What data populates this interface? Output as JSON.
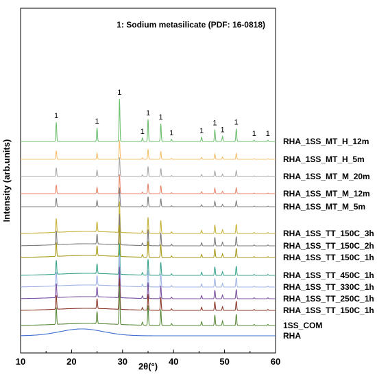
{
  "chart_data": {
    "type": "line",
    "annotation": "1: Sodium metasilicate (PDF: 16-0818)",
    "xlabel": "2θ(°)",
    "ylabel": "Intensity (arb.units)",
    "xlim": [
      10,
      60
    ],
    "x_ticks": [
      10,
      20,
      30,
      40,
      50,
      60
    ],
    "x_tick_labels": [
      "10",
      "20",
      "30",
      "40",
      "50",
      "60"
    ],
    "peak_marker_label": "1",
    "peak_markers": [
      {
        "x": 17.0,
        "label": "1"
      },
      {
        "x": 25.0,
        "label": "1"
      },
      {
        "x": 29.4,
        "label": "1"
      },
      {
        "x": 33.9,
        "label": "1"
      },
      {
        "x": 35.0,
        "label": "1"
      },
      {
        "x": 37.5,
        "label": "1"
      },
      {
        "x": 39.6,
        "label": "1"
      },
      {
        "x": 45.5,
        "label": "1"
      },
      {
        "x": 48.1,
        "label": "1"
      },
      {
        "x": 49.6,
        "label": "1"
      },
      {
        "x": 52.3,
        "label": "1"
      },
      {
        "x": 55.8,
        "label": "1"
      },
      {
        "x": 58.5,
        "label": "1"
      }
    ],
    "series": [
      {
        "name": "RHA_1SS_MT_H_12m",
        "color": "#6fbf6f"
      },
      {
        "name": "RHA_1SS_MT_H_5m",
        "color": "#f5c06e"
      },
      {
        "name": "RHA_1SS_MT_M_20m",
        "color": "#a8a8a8"
      },
      {
        "name": "RHA_1SS_MT_M_12m",
        "color": "#e8866b"
      },
      {
        "name": "RHA_1SS_MT_M_5m",
        "color": "#7f7f7f"
      },
      {
        "name": "RHA_1SS_TT_150C_3h",
        "color": "#c7b23a"
      },
      {
        "name": "RHA_1SS_TT_150C_2h",
        "color": "#7a7a7a"
      },
      {
        "name": "RHA_1SS_TT_150C_1h",
        "color": "#a89a1a"
      },
      {
        "name": "RHA_1SS_TT_450C_1h",
        "color": "#3aa48c"
      },
      {
        "name": "RHA_1SS_TT_330C_1h",
        "color": "#9fb4e6"
      },
      {
        "name": "RHA_1SS_TT_250C_1h",
        "color": "#7a4fa0"
      },
      {
        "name": "RHA_1SS_TT_150C_1h",
        "color": "#8b3a2a"
      },
      {
        "name": "1SS_COM",
        "color": "#5a8a3a"
      },
      {
        "name": "RHA",
        "color": "#3f6fcf"
      }
    ],
    "grid": false,
    "legend_placement": "right"
  }
}
